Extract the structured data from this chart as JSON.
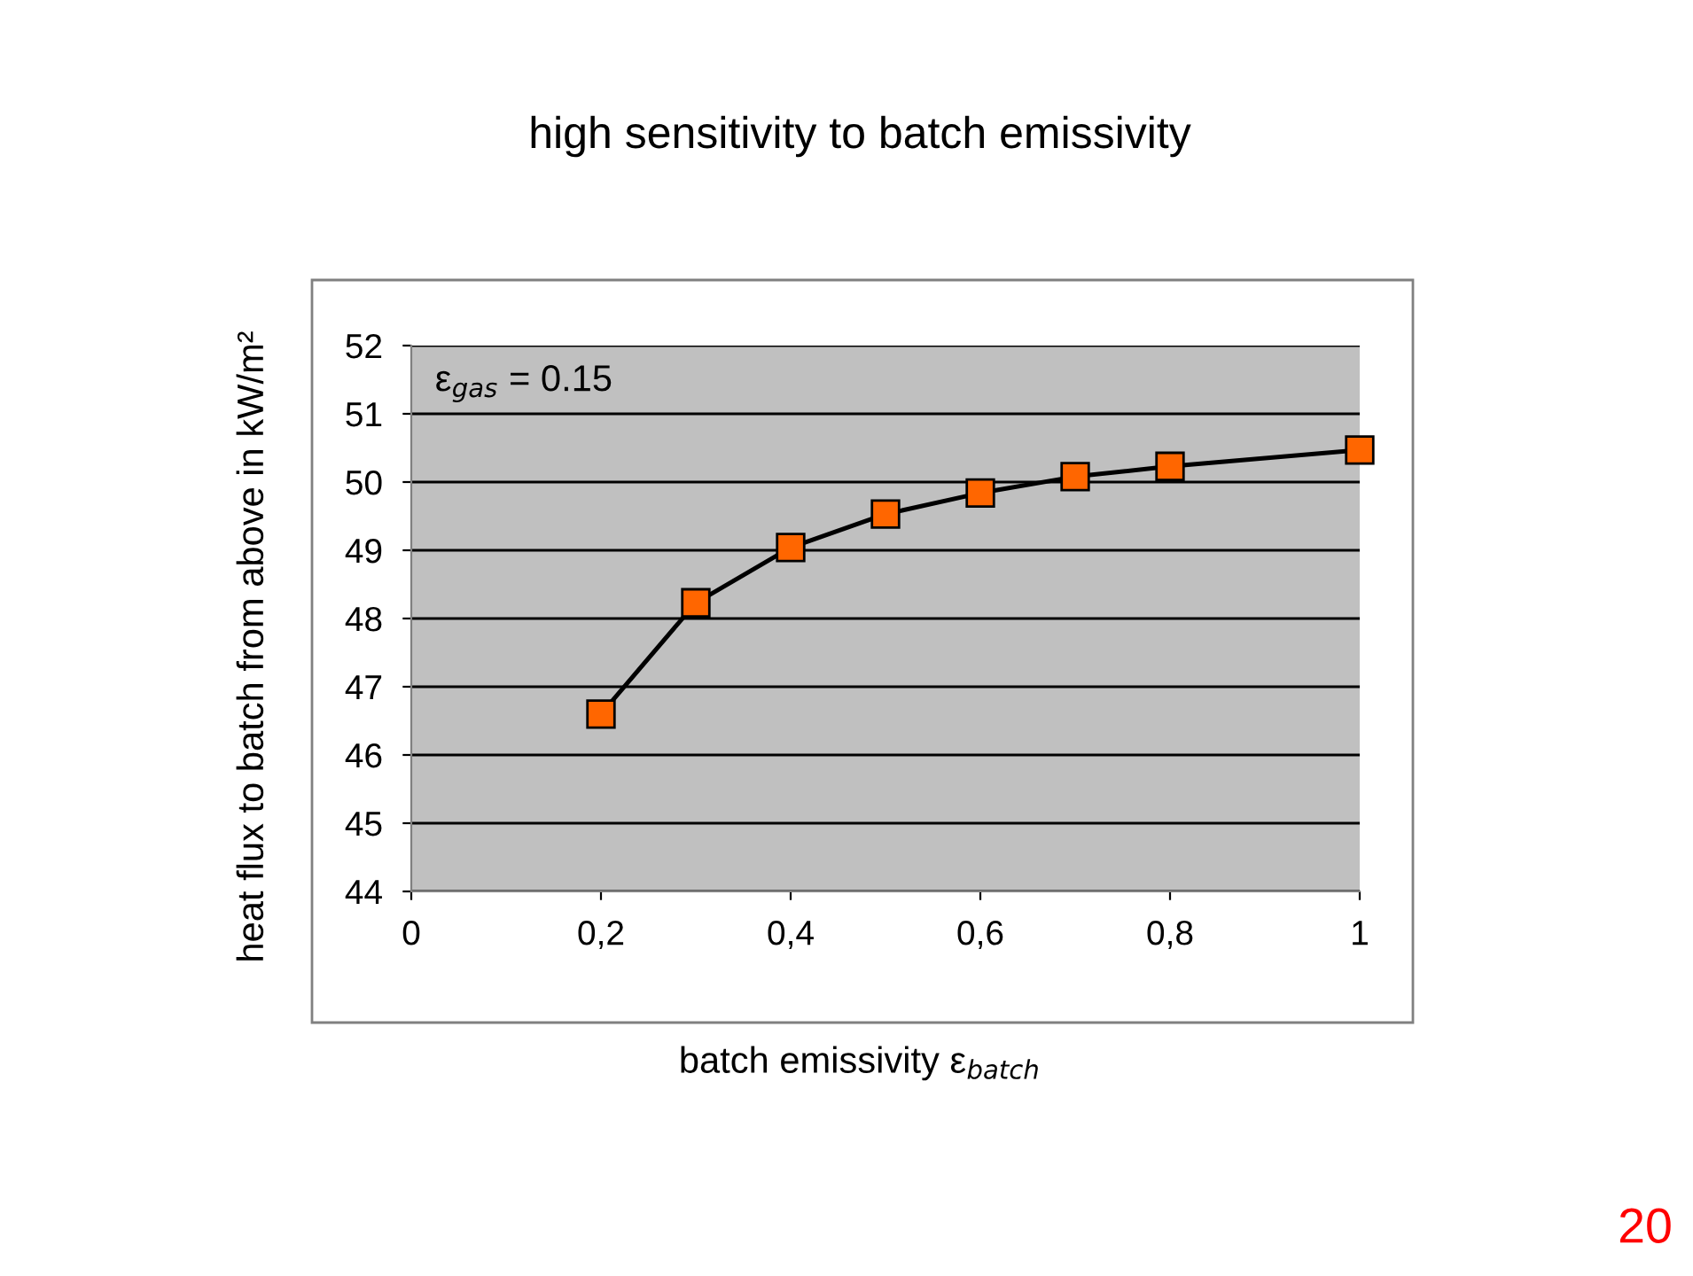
{
  "chart_data": {
    "type": "line",
    "title": "high sensitivity to batch emissivity",
    "xlabel": "batch emissivity ε$_{batch}$",
    "ylabel": "heat flux to batch from above in kW/m²",
    "x": [
      0.2,
      0.3,
      0.4,
      0.5,
      0.6,
      0.7,
      0.8,
      1.0
    ],
    "series": [
      {
        "color": "#ff6600",
        "values": [
          46.6,
          48.23,
          49.04,
          49.53,
          49.84,
          50.08,
          50.23,
          50.47
        ]
      }
    ],
    "marker": "square",
    "line_style": "solid",
    "grid": "y",
    "xlim": [
      0,
      1
    ],
    "xticks": [
      0,
      {
        "value": 0.2,
        "label": "0,2"
      },
      {
        "value": 0.4,
        "label": "0,4"
      },
      {
        "value": 0.6,
        "label": "0,6"
      },
      {
        "value": 0.8,
        "label": "0,8"
      },
      1
    ],
    "ylim": [
      44,
      52
    ],
    "yticks": [
      44,
      45,
      46,
      47,
      48,
      49,
      50,
      51,
      52
    ],
    "annotations": [
      "ε$_{gas}$ = 0.15",
      "20"
    ]
  }
}
